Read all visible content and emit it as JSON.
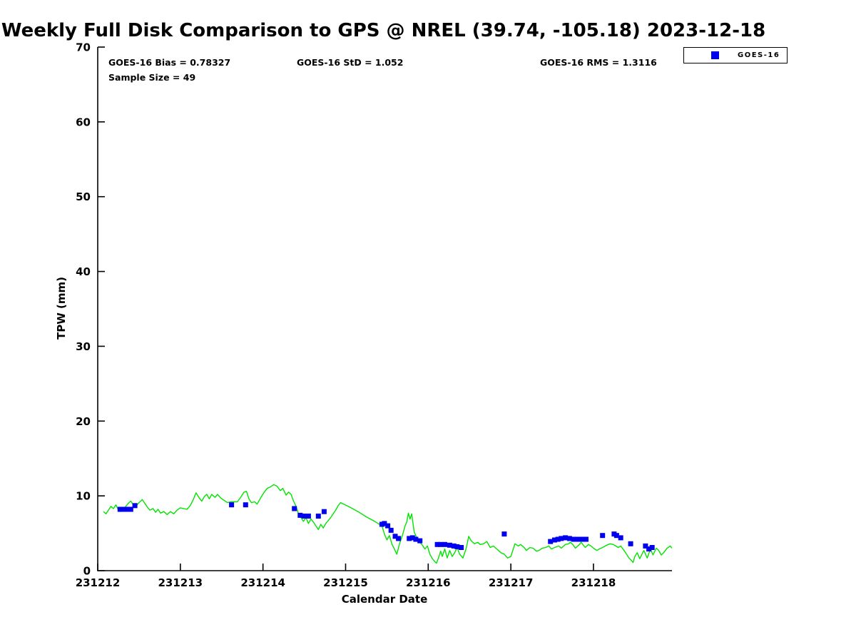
{
  "title": "Weekly Full Disk Comparison to GPS @ NREL (39.74, -105.18) 2023-12-18",
  "stats": {
    "bias": "GOES-16 Bias = 0.78327",
    "std": "GOES-16 StD = 1.052",
    "rms": "GOES-16 RMS = 1.3116",
    "sample_size": "Sample Size = 49"
  },
  "legend": {
    "position": "top-right",
    "entries": [
      {
        "label": "GOES-16",
        "marker": "square",
        "color": "#0000ee"
      }
    ]
  },
  "colors": {
    "gps_line": "#00e400",
    "goes16": "#0000ee",
    "axis": "#000000",
    "background": "#ffffff"
  },
  "chart_data": {
    "type": "line",
    "title": "Weekly Full Disk Comparison to GPS @ NREL (39.74, -105.18) 2023-12-18",
    "xlabel": "Calendar Date",
    "ylabel": "TPW (mm)",
    "ylim": [
      0,
      70
    ],
    "y_ticks": [
      0,
      10,
      20,
      30,
      40,
      50,
      60,
      70
    ],
    "x_tick_labels": [
      "231212",
      "231213",
      "231214",
      "231215",
      "231216",
      "231217",
      "231218"
    ],
    "x_tick_positions_days": [
      0,
      1,
      2,
      3,
      4,
      5,
      6
    ],
    "xlim_days": [
      0,
      6.95
    ],
    "x_base_date": "231212",
    "grid": false,
    "legend_position": "top-right",
    "series": [
      {
        "name": "GPS",
        "type": "line",
        "color": "#00e400",
        "x_days": [
          0.07,
          0.1,
          0.13,
          0.16,
          0.19,
          0.22,
          0.25,
          0.28,
          0.31,
          0.34,
          0.37,
          0.4,
          0.43,
          0.46,
          0.5,
          0.54,
          0.57,
          0.6,
          0.63,
          0.67,
          0.7,
          0.73,
          0.76,
          0.8,
          0.84,
          0.88,
          0.92,
          0.96,
          1.0,
          1.04,
          1.08,
          1.12,
          1.16,
          1.19,
          1.23,
          1.26,
          1.29,
          1.32,
          1.35,
          1.38,
          1.42,
          1.45,
          1.49,
          1.53,
          1.57,
          1.61,
          1.65,
          1.69,
          1.73,
          1.77,
          1.8,
          1.83,
          1.86,
          1.9,
          1.93,
          1.97,
          2.01,
          2.05,
          2.09,
          2.13,
          2.17,
          2.21,
          2.24,
          2.28,
          2.31,
          2.34,
          2.37,
          2.4,
          2.43,
          2.46,
          2.49,
          2.52,
          2.55,
          2.58,
          2.61,
          2.64,
          2.67,
          2.7,
          2.73,
          2.76,
          2.79,
          2.82,
          2.85,
          2.88,
          2.91,
          2.94,
          3.05,
          3.15,
          3.25,
          3.35,
          3.44,
          3.47,
          3.5,
          3.53,
          3.56,
          3.59,
          3.62,
          3.65,
          3.69,
          3.72,
          3.74,
          3.76,
          3.78,
          3.8,
          3.83,
          3.86,
          3.89,
          3.93,
          3.96,
          3.99,
          4.02,
          4.05,
          4.08,
          4.1,
          4.13,
          4.15,
          4.17,
          4.2,
          4.23,
          4.26,
          4.29,
          4.32,
          4.35,
          4.38,
          4.42,
          4.46,
          4.49,
          4.52,
          4.56,
          4.6,
          4.63,
          4.67,
          4.71,
          4.75,
          4.79,
          4.83,
          4.88,
          4.92,
          4.96,
          5.0,
          5.05,
          5.09,
          5.12,
          5.16,
          5.19,
          5.23,
          5.27,
          5.31,
          5.34,
          5.38,
          5.42,
          5.46,
          5.49,
          5.53,
          5.58,
          5.61,
          5.66,
          5.7,
          5.72,
          5.75,
          5.78,
          5.83,
          5.85,
          5.9,
          5.94,
          5.97,
          6.0,
          6.04,
          6.07,
          6.11,
          6.16,
          6.2,
          6.24,
          6.27,
          6.3,
          6.33,
          6.37,
          6.4,
          6.43,
          6.48,
          6.5,
          6.53,
          6.56,
          6.61,
          6.65,
          6.69,
          6.72,
          6.76,
          6.79,
          6.82,
          6.85,
          6.89,
          6.93,
          6.95
        ],
        "y": [
          7.9,
          7.6,
          8.1,
          8.6,
          8.3,
          8.8,
          8.1,
          7.9,
          8.2,
          8.6,
          9.0,
          9.3,
          8.8,
          8.6,
          9.1,
          9.5,
          9.0,
          8.5,
          8.1,
          8.3,
          7.8,
          8.2,
          7.7,
          7.9,
          7.5,
          7.9,
          7.6,
          8.1,
          8.4,
          8.3,
          8.2,
          8.7,
          9.6,
          10.4,
          9.7,
          9.3,
          9.9,
          10.2,
          9.6,
          10.2,
          9.8,
          10.2,
          9.7,
          9.4,
          9.1,
          9.2,
          9.2,
          9.2,
          9.8,
          10.5,
          10.6,
          9.6,
          9.1,
          9.2,
          8.9,
          9.7,
          10.4,
          11.0,
          11.2,
          11.5,
          11.3,
          10.7,
          11.0,
          10.1,
          10.5,
          10.2,
          9.3,
          8.6,
          7.6,
          7.1,
          6.6,
          7.1,
          6.3,
          6.9,
          6.5,
          6.0,
          5.5,
          6.2,
          5.7,
          6.3,
          6.7,
          7.1,
          7.6,
          8.1,
          8.7,
          9.1,
          8.5,
          7.9,
          7.2,
          6.6,
          6.0,
          4.9,
          4.1,
          4.7,
          3.6,
          2.9,
          2.2,
          3.5,
          4.8,
          6.0,
          6.5,
          7.7,
          6.9,
          7.6,
          5.2,
          4.4,
          3.9,
          3.4,
          2.9,
          3.3,
          2.2,
          1.6,
          1.2,
          1.0,
          1.9,
          2.6,
          1.9,
          2.9,
          1.7,
          2.7,
          1.9,
          2.4,
          3.1,
          2.2,
          1.7,
          3.0,
          4.6,
          4.0,
          3.6,
          3.8,
          3.5,
          3.6,
          3.9,
          3.1,
          3.3,
          2.9,
          2.4,
          2.2,
          1.7,
          1.9,
          3.6,
          3.3,
          3.5,
          3.1,
          2.7,
          3.1,
          3.0,
          2.6,
          2.7,
          3.0,
          3.1,
          3.3,
          2.9,
          3.1,
          3.3,
          3.0,
          3.5,
          3.6,
          3.8,
          3.5,
          3.0,
          3.5,
          3.8,
          3.1,
          3.5,
          3.3,
          3.0,
          2.7,
          2.9,
          3.1,
          3.4,
          3.6,
          3.5,
          3.3,
          3.1,
          3.3,
          2.7,
          2.2,
          1.7,
          1.1,
          1.9,
          2.4,
          1.6,
          2.7,
          1.7,
          2.9,
          2.1,
          3.0,
          2.7,
          2.1,
          2.4,
          3.0,
          3.3,
          3.0
        ]
      },
      {
        "name": "GOES-16",
        "type": "scatter",
        "marker": "square",
        "color": "#0000ee",
        "sample_size": 49,
        "x_days": [
          0.27,
          0.31,
          0.36,
          0.4,
          0.45,
          1.62,
          1.79,
          2.38,
          2.45,
          2.5,
          2.55,
          2.67,
          2.74,
          3.44,
          3.47,
          3.51,
          3.55,
          3.6,
          3.64,
          3.77,
          3.81,
          3.85,
          3.9,
          4.11,
          4.15,
          4.2,
          4.26,
          4.31,
          4.35,
          4.4,
          4.92,
          5.48,
          5.53,
          5.57,
          5.61,
          5.66,
          5.71,
          5.76,
          5.81,
          5.86,
          5.91,
          6.11,
          6.25,
          6.28,
          6.33,
          6.45,
          6.63,
          6.67,
          6.71
        ],
        "y": [
          8.2,
          8.2,
          8.2,
          8.2,
          8.7,
          8.8,
          8.8,
          8.3,
          7.4,
          7.3,
          7.3,
          7.3,
          7.9,
          6.2,
          6.3,
          6.0,
          5.4,
          4.6,
          4.3,
          4.3,
          4.4,
          4.2,
          4.0,
          3.5,
          3.5,
          3.5,
          3.4,
          3.3,
          3.2,
          3.1,
          4.9,
          3.9,
          4.1,
          4.2,
          4.3,
          4.4,
          4.3,
          4.2,
          4.2,
          4.2,
          4.2,
          4.7,
          4.9,
          4.7,
          4.4,
          3.6,
          3.3,
          2.9,
          3.1
        ]
      }
    ]
  }
}
